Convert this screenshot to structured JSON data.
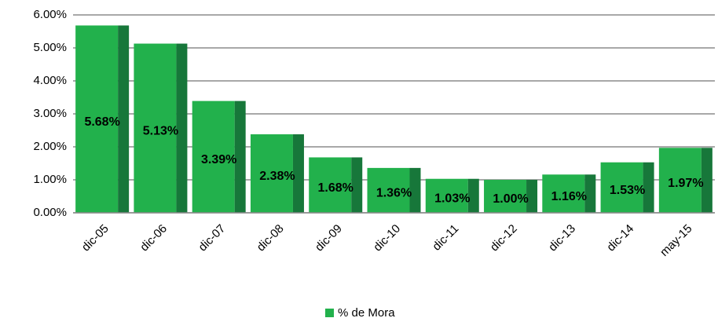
{
  "chart_data": {
    "type": "bar",
    "categories": [
      "dic-05",
      "dic-06",
      "dic-07",
      "dic-08",
      "dic-09",
      "dic-10",
      "dic-11",
      "dic-12",
      "dic-13",
      "dic-14",
      "may-15"
    ],
    "series": [
      {
        "name": "% de Mora",
        "color": "#22b14c",
        "values": [
          5.68,
          5.13,
          3.39,
          2.38,
          1.68,
          1.36,
          1.03,
          1.0,
          1.16,
          1.53,
          1.97
        ],
        "value_labels": [
          "5.68%",
          "5.13%",
          "3.39%",
          "2.38%",
          "1.68%",
          "1.36%",
          "1.03%",
          "1.00%",
          "1.16%",
          "1.53%",
          "1.97%"
        ]
      }
    ],
    "ylim": [
      0,
      6
    ],
    "yticks": [
      {
        "value": 0,
        "label": "0.00%"
      },
      {
        "value": 1,
        "label": "1.00%"
      },
      {
        "value": 2,
        "label": "2.00%"
      },
      {
        "value": 3,
        "label": "3.00%"
      },
      {
        "value": 4,
        "label": "4.00%"
      },
      {
        "value": 5,
        "label": "5.00%"
      },
      {
        "value": 6,
        "label": "6.00%"
      }
    ],
    "grid": true,
    "legend": "bottom"
  }
}
